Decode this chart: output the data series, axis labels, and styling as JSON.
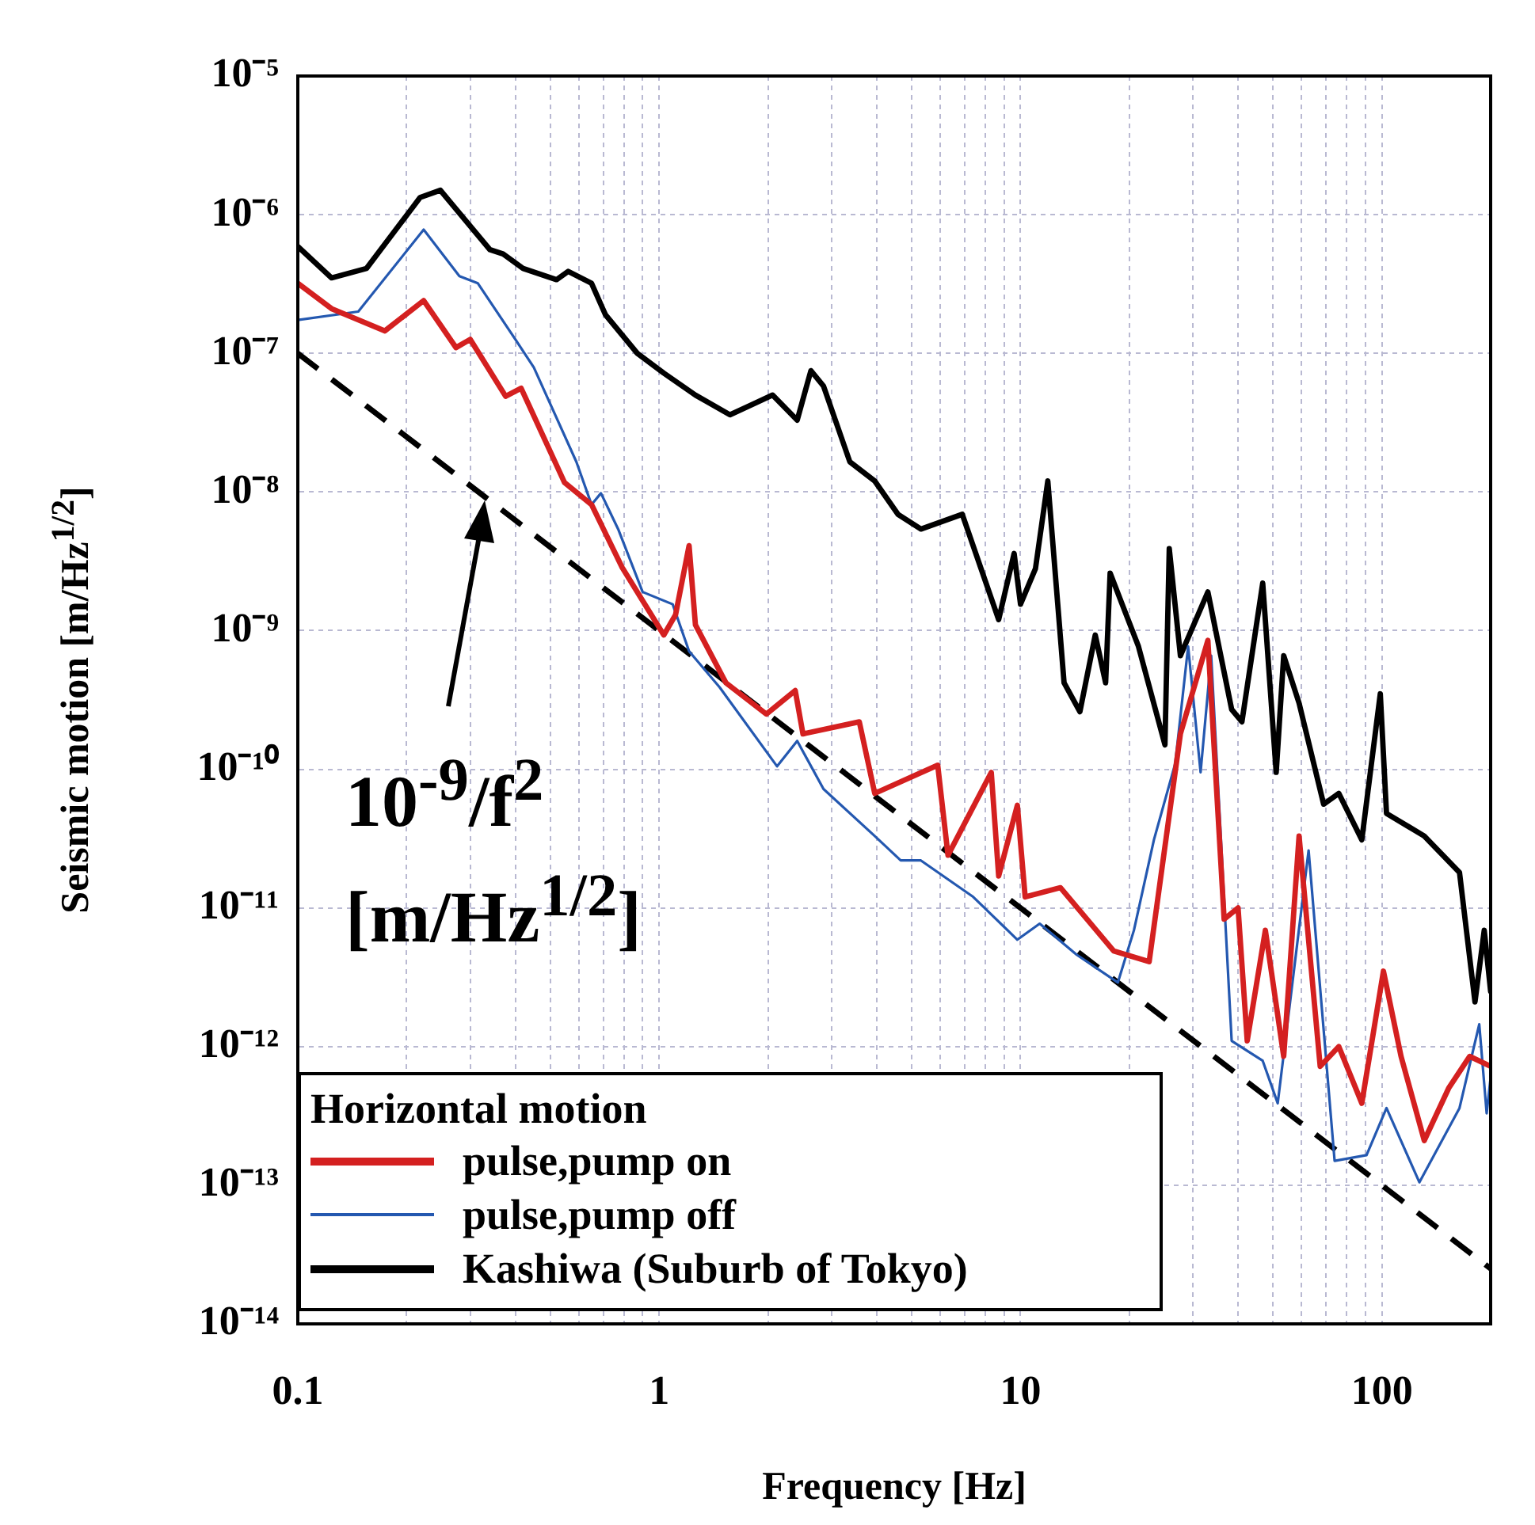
{
  "chart_data": {
    "type": "line",
    "xlabel": "Frequency [Hz]",
    "ylabel": "Seismic motion [m/Hz$^{1/2}$]",
    "legend_title": "Horizontal motion",
    "annotations": [
      "10$^{-9}$/f$^{2}$",
      "[m/Hz$^{1/2}$]"
    ],
    "log": "xy",
    "grid": true,
    "legend": "bottom left",
    "line_style": "solid",
    "xlim": [
      0.1,
      200
    ],
    "xticks": [
      0.1,
      {
        "value": 0.2,
        "label": null
      },
      {
        "value": 0.3,
        "label": null
      },
      {
        "value": 0.4,
        "label": null
      },
      {
        "value": 0.5,
        "label": null
      },
      {
        "value": 0.6,
        "label": null
      },
      {
        "value": 0.7,
        "label": null
      },
      {
        "value": 0.8,
        "label": null
      },
      {
        "value": 0.9,
        "label": null
      },
      1,
      {
        "value": 2,
        "label": null
      },
      {
        "value": 3,
        "label": null
      },
      {
        "value": 4,
        "label": null
      },
      {
        "value": 5,
        "label": null
      },
      {
        "value": 6,
        "label": null
      },
      {
        "value": 7,
        "label": null
      },
      {
        "value": 8,
        "label": null
      },
      {
        "value": 9,
        "label": null
      },
      10,
      {
        "value": 20,
        "label": null
      },
      {
        "value": 30,
        "label": null
      },
      {
        "value": 40,
        "label": null
      },
      {
        "value": 50,
        "label": null
      },
      {
        "value": 60,
        "label": null
      },
      {
        "value": 70,
        "label": null
      },
      {
        "value": 80,
        "label": null
      },
      {
        "value": 90,
        "label": null
      },
      100,
      {
        "value": 200,
        "label": null
      }
    ],
    "ylim": [
      1e-14,
      1e-05
    ],
    "yticks": [
      {
        "value": 1e-14,
        "label": "10⁻¹⁴"
      },
      {
        "value": 1e-13,
        "label": "10⁻¹³"
      },
      {
        "value": 1e-12,
        "label": "10⁻¹²"
      },
      {
        "value": 1e-11,
        "label": "10⁻¹¹"
      },
      {
        "value": 1e-10,
        "label": "10⁻¹⁰"
      },
      {
        "value": 1e-09,
        "label": "10⁻⁹"
      },
      {
        "value": 1e-08,
        "label": "10⁻⁸"
      },
      {
        "value": 1e-07,
        "label": "10⁻⁷"
      },
      {
        "value": 1e-06,
        "label": "10⁻⁶"
      },
      {
        "value": 1e-05,
        "label": "10⁻⁵"
      }
    ],
    "series": [
      {
        "name": "pulse,pump on",
        "color": "#d42020",
        "x": [
          0.1,
          0.124,
          0.174,
          0.223,
          0.274,
          0.3,
          0.376,
          0.415,
          0.547,
          0.65,
          0.79,
          1.03,
          1.11,
          1.21,
          1.26,
          1.53,
          1.98,
          2.38,
          2.5,
          3.58,
          3.95,
          5.9,
          6.3,
          8.3,
          8.7,
          9.8,
          10.3,
          12.9,
          18.1,
          22.7,
          27.7,
          33,
          36.6,
          40,
          42.4,
          47.6,
          53.5,
          59,
          67.5,
          76,
          88,
          101,
          113,
          131,
          153,
          175,
          200
        ],
        "values": [
          3.2e-07,
          2.1e-07,
          1.45e-07,
          2.4e-07,
          1.1e-07,
          1.26e-07,
          4.9e-08,
          5.6e-08,
          1.17e-08,
          8.1e-09,
          2.85e-09,
          9.3e-10,
          1.3e-09,
          4.1e-09,
          1.1e-09,
          4.2e-10,
          2.5e-10,
          3.7e-10,
          1.8e-10,
          2.2e-10,
          6.7e-11,
          1.07e-10,
          2.4e-11,
          9.5e-11,
          1.7e-11,
          5.5e-11,
          1.2e-11,
          1.4e-11,
          4.9e-12,
          4.1e-12,
          1.8e-10,
          8.5e-10,
          8.3e-12,
          1e-11,
          1.1e-12,
          6.9e-12,
          8.5e-13,
          3.3e-11,
          7.2e-13,
          1e-12,
          3.9e-13,
          3.5e-12,
          8.5e-13,
          2.1e-13,
          5e-13,
          8.5e-13,
          7.2e-13
        ]
      },
      {
        "name": "pulse,pump off",
        "color": "#2458b0",
        "x": [
          0.1,
          0.147,
          0.223,
          0.28,
          0.315,
          0.4,
          0.45,
          0.59,
          0.65,
          0.69,
          0.77,
          0.9,
          1.09,
          1.21,
          1.47,
          2.12,
          2.41,
          2.85,
          3.95,
          4.66,
          5.3,
          7.4,
          9.8,
          11.3,
          14.3,
          18.6,
          20.6,
          23.4,
          26.8,
          29.1,
          31.5,
          33.7,
          38.4,
          46.8,
          51.5,
          62.7,
          74,
          90.7,
          103,
          127,
          164,
          186,
          195,
          200
        ],
        "values": [
          1.74e-07,
          2e-07,
          7.8e-07,
          3.6e-07,
          3.2e-07,
          1.26e-07,
          7.9e-08,
          1.65e-08,
          8.1e-09,
          9.8e-09,
          5.4e-09,
          1.9e-09,
          1.55e-09,
          7.1e-10,
          3.9e-10,
          1.05e-10,
          1.6e-10,
          7.2e-11,
          3.3e-11,
          2.2e-11,
          2.2e-11,
          1.2e-11,
          5.9e-12,
          7.7e-12,
          4.6e-12,
          2.9e-12,
          6.9e-12,
          3.1e-11,
          1.1e-10,
          7.7e-10,
          9.5e-11,
          6.6e-10,
          1.1e-12,
          7.9e-13,
          3.9e-13,
          2.6e-11,
          1.5e-13,
          1.65e-13,
          3.6e-13,
          1.05e-13,
          3.6e-13,
          1.45e-12,
          3.3e-13,
          6e-13
        ]
      },
      {
        "name": "Kashiwa (Suburb of Tokyo)",
        "color": "#000000",
        "x": [
          0.1,
          0.124,
          0.155,
          0.218,
          0.248,
          0.34,
          0.37,
          0.42,
          0.52,
          0.56,
          0.65,
          0.71,
          0.87,
          1.03,
          1.26,
          1.57,
          2.06,
          2.41,
          2.63,
          2.85,
          3.37,
          3.95,
          4.58,
          5.3,
          6.9,
          8.7,
          9.6,
          10,
          11,
          11.9,
          13.2,
          14.6,
          16.1,
          17.2,
          17.7,
          21.2,
          25.1,
          25.8,
          27.7,
          33,
          38.4,
          41,
          46.8,
          51,
          53.5,
          59,
          69,
          76,
          88,
          99,
          103,
          131,
          164,
          181,
          192,
          200
        ],
        "values": [
          5.9e-07,
          3.5e-07,
          4.1e-07,
          1.33e-06,
          1.5e-06,
          5.6e-07,
          5.2e-07,
          4.1e-07,
          3.4e-07,
          3.9e-07,
          3.2e-07,
          1.9e-07,
          1e-07,
          7.2e-08,
          5e-08,
          3.6e-08,
          5e-08,
          3.3e-08,
          7.5e-08,
          5.8e-08,
          1.65e-08,
          1.2e-08,
          6.9e-09,
          5.4e-09,
          6.9e-09,
          1.2e-09,
          3.6e-09,
          1.55e-09,
          2.8e-09,
          1.2e-08,
          4.2e-10,
          2.6e-10,
          9.3e-10,
          4.2e-10,
          2.6e-09,
          7.7e-10,
          1.5e-10,
          3.9e-09,
          6.6e-10,
          1.9e-09,
          2.7e-10,
          2.2e-10,
          2.2e-09,
          9.5e-11,
          6.6e-10,
          3e-10,
          5.6e-11,
          6.7e-11,
          3.1e-11,
          3.5e-10,
          4.8e-11,
          3.3e-11,
          1.8e-11,
          2.1e-12,
          6.9e-12,
          2.5e-12
        ]
      },
      {
        "type": "line",
        "color": "#000000",
        "line_style": "dashed",
        "x": [
          0.1,
          200
        ],
        "values": [
          1e-07,
          2.5e-14
        ]
      }
    ]
  }
}
